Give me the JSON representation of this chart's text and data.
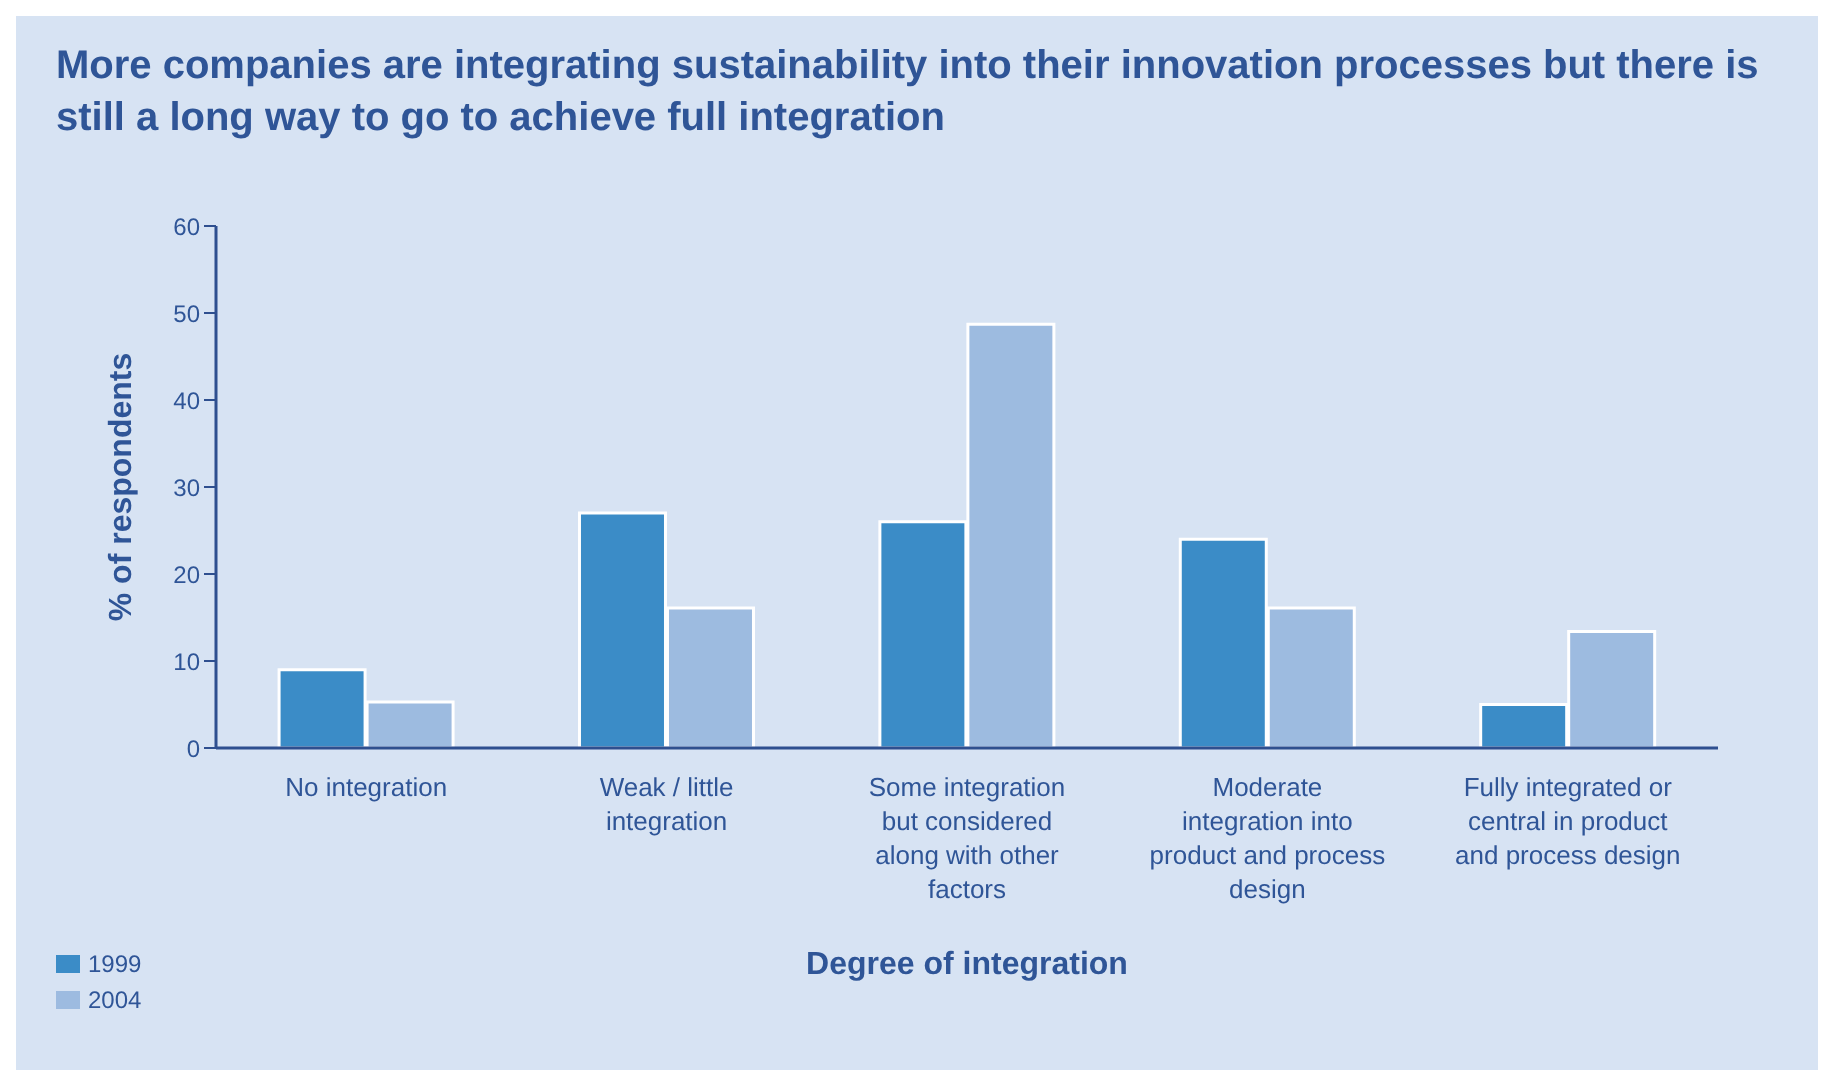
{
  "chart_data": {
    "type": "bar",
    "title": "More companies are integrating sustainability into their innovation processes but there is still a long way to go to achieve full integration",
    "xlabel": "Degree of integration",
    "ylabel": "% of respondents",
    "categories": [
      "No integration",
      "Weak / little integration",
      "Some integration but considered along with other factors",
      "Moderate integration into product and process design",
      "Fully integrated or central in product and process design"
    ],
    "series": [
      {
        "name": "1999",
        "color": "#3b8cc7",
        "values": [
          9,
          27,
          26,
          24,
          5
        ]
      },
      {
        "name": "2004",
        "color": "#9dbbe0",
        "values": [
          5.3,
          16.1,
          48.7,
          16.1,
          13.4
        ]
      }
    ],
    "ylim": [
      0,
      60
    ],
    "yticks": [
      0,
      10,
      20,
      30,
      40,
      50,
      60
    ],
    "grid": false,
    "legend": "bottom left"
  }
}
